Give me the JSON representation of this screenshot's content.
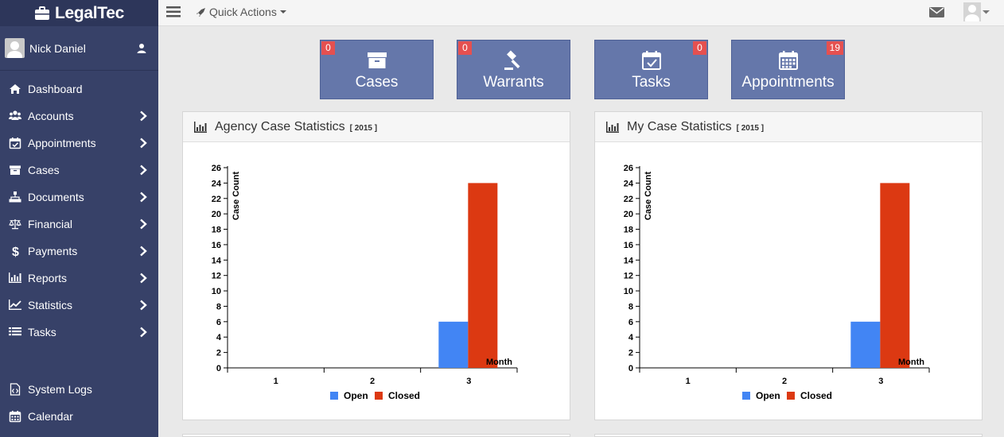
{
  "app": {
    "brand": "LegalTec"
  },
  "user": {
    "name": "Nick Daniel"
  },
  "sidebar": {
    "items": [
      {
        "label": "Dashboard",
        "icon": "home-icon",
        "chevron": false
      },
      {
        "label": "Accounts",
        "icon": "users-icon",
        "chevron": true
      },
      {
        "label": "Appointments",
        "icon": "calendar-check-icon",
        "chevron": true
      },
      {
        "label": "Cases",
        "icon": "archive-icon",
        "chevron": true
      },
      {
        "label": "Documents",
        "icon": "sitemap-icon",
        "chevron": true
      },
      {
        "label": "Financial",
        "icon": "balance-scale-icon",
        "chevron": true
      },
      {
        "label": "Payments",
        "icon": "dollar-icon",
        "chevron": true
      },
      {
        "label": "Reports",
        "icon": "bar-chart-icon",
        "chevron": true
      },
      {
        "label": "Statistics",
        "icon": "line-chart-icon",
        "chevron": true
      },
      {
        "label": "Tasks",
        "icon": "list-icon",
        "chevron": true
      }
    ],
    "bottom_items": [
      {
        "label": "System Logs",
        "icon": "file-code-icon"
      },
      {
        "label": "Calendar",
        "icon": "calendar-icon"
      }
    ]
  },
  "topbar": {
    "quick_actions": "Quick Actions"
  },
  "tiles": [
    {
      "label": "Cases",
      "badge": "0",
      "icon": "archive-icon"
    },
    {
      "label": "Warrants",
      "badge": "0",
      "icon": "gavel-icon"
    },
    {
      "label": "Tasks",
      "badge": "0",
      "icon": "calendar-check-icon"
    },
    {
      "label": "Appointments",
      "badge": "19",
      "icon": "calendar-icon"
    }
  ],
  "panels": [
    {
      "title": "Agency Case Statistics",
      "year": "[ 2015 ]"
    },
    {
      "title": "My Case Statistics",
      "year": "[ 2015 ]"
    }
  ],
  "colors": {
    "open": "#4285f4",
    "closed": "#dc3912",
    "sidebar": "#374168",
    "tile": "#6577aa",
    "badge": "#e55050"
  },
  "chart_data": [
    {
      "type": "bar",
      "title": "Agency Case Statistics [ 2015 ]",
      "xlabel": "Month",
      "ylabel": "Case Count",
      "categories": [
        "1",
        "2",
        "3"
      ],
      "series": [
        {
          "name": "Open",
          "values": [
            0,
            0,
            6
          ]
        },
        {
          "name": "Closed",
          "values": [
            0,
            0,
            24
          ]
        }
      ],
      "ylim": [
        0,
        26
      ],
      "yticks": [
        0,
        2,
        4,
        6,
        8,
        10,
        12,
        14,
        16,
        18,
        20,
        22,
        24,
        26
      ],
      "legend": "bottom",
      "grid": false
    },
    {
      "type": "bar",
      "title": "My Case Statistics [ 2015 ]",
      "xlabel": "Month",
      "ylabel": "Case Count",
      "categories": [
        "1",
        "2",
        "3"
      ],
      "series": [
        {
          "name": "Open",
          "values": [
            0,
            0,
            6
          ]
        },
        {
          "name": "Closed",
          "values": [
            0,
            0,
            24
          ]
        }
      ],
      "ylim": [
        0,
        26
      ],
      "yticks": [
        0,
        2,
        4,
        6,
        8,
        10,
        12,
        14,
        16,
        18,
        20,
        22,
        24,
        26
      ],
      "legend": "bottom",
      "grid": false
    }
  ]
}
